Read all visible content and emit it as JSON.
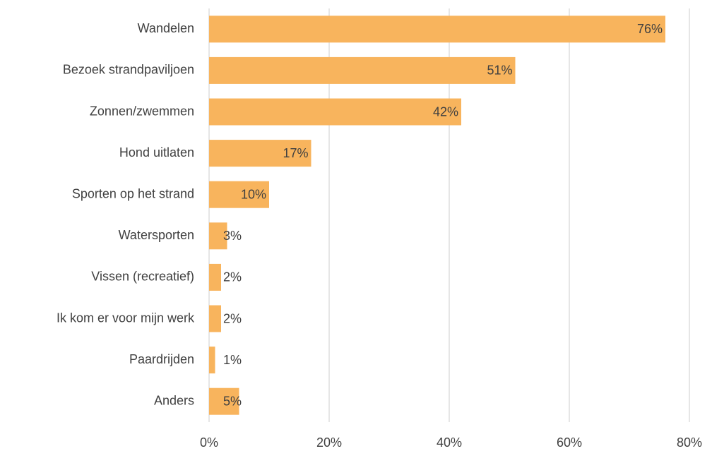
{
  "chart_data": {
    "type": "hbar",
    "categories": [
      "Wandelen",
      "Bezoek strandpaviljoen",
      "Zonnen/zwemmen",
      "Hond uitlaten",
      "Sporten op het strand",
      "Watersporten",
      "Vissen (recreatief)",
      "Ik kom er voor mijn werk",
      "Paardrijden",
      "Anders"
    ],
    "values": [
      76,
      51,
      42,
      17,
      10,
      3,
      2,
      2,
      1,
      5
    ],
    "value_labels": [
      "76%",
      "51%",
      "42%",
      "17%",
      "10%",
      "3%",
      "2%",
      "2%",
      "1%",
      "5%"
    ],
    "color": "#f8b45d",
    "xlim": [
      0,
      80
    ],
    "xticks": [
      {
        "value": 0,
        "label": "0%"
      },
      {
        "value": 20,
        "label": "20%"
      },
      {
        "value": 40,
        "label": "40%"
      },
      {
        "value": 60,
        "label": "60%"
      },
      {
        "value": 80,
        "label": "80%"
      }
    ],
    "grid": true
  }
}
